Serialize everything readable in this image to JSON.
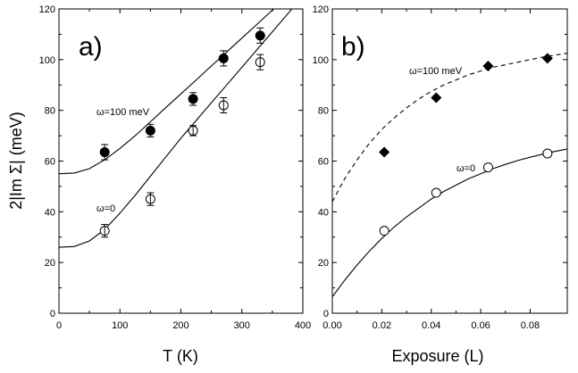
{
  "chart_data": [
    {
      "panel": "a)",
      "type": "scatter",
      "xlabel": "T (K)",
      "ylabel": "2|Im Σ| (meV)",
      "xlim": [
        0,
        400
      ],
      "ylim": [
        0,
        120
      ],
      "xticks": [
        0,
        100,
        200,
        300,
        400
      ],
      "yticks": [
        0,
        20,
        40,
        60,
        80,
        100,
        120
      ],
      "series": [
        {
          "name": "ω=100 meV",
          "marker": "filled-circle",
          "x": [
            75,
            150,
            220,
            270,
            330
          ],
          "y": [
            63.5,
            72,
            84.5,
            100.5,
            109.5
          ],
          "yerr": [
            3,
            2.5,
            2.5,
            3,
            3
          ],
          "fit_curve": {
            "x": [
              0,
              25,
              50,
              75,
              100,
              125,
              150,
              175,
              200,
              225,
              250,
              275,
              300,
              325,
              350,
              375,
              400
            ],
            "y": [
              55,
              55.3,
              57,
              60.5,
              65,
              70,
              75.5,
              81,
              86.5,
              92,
              97.5,
              103,
              108.5,
              114,
              119.5,
              125,
              130.5
            ]
          }
        },
        {
          "name": "ω=0",
          "marker": "open-circle-cross",
          "x": [
            75,
            150,
            220,
            270,
            330
          ],
          "y": [
            32.5,
            45,
            72,
            82,
            99
          ],
          "yerr": [
            2.5,
            2.5,
            2,
            3,
            3
          ],
          "fit_curve": {
            "x": [
              0,
              25,
              50,
              75,
              100,
              125,
              150,
              175,
              200,
              225,
              250,
              275,
              300,
              325,
              350,
              375,
              400
            ],
            "y": [
              26,
              26.3,
              28.5,
              33,
              39.5,
              46.5,
              54,
              61.5,
              69,
              76,
              83,
              90,
              97,
              104,
              111,
              118,
              125
            ]
          }
        }
      ]
    },
    {
      "panel": "b)",
      "type": "scatter",
      "xlabel": "Exposure (L)",
      "ylabel": "",
      "xlim": [
        0.0,
        0.095
      ],
      "ylim": [
        0,
        120
      ],
      "xticks": [
        0.0,
        0.02,
        0.04,
        0.06,
        0.08
      ],
      "xtick_labels": [
        "0.00",
        "0.02",
        "0.04",
        "0.06",
        "0.08"
      ],
      "yticks": [
        0,
        20,
        40,
        60,
        80,
        100,
        120
      ],
      "series": [
        {
          "name": "ω=100 meV",
          "marker": "filled-diamond",
          "line": "dashed",
          "x": [
            0.021,
            0.042,
            0.063,
            0.087
          ],
          "y": [
            63.5,
            85,
            97.5,
            100.5
          ],
          "fit_curve": {
            "x": [
              0.0,
              0.005,
              0.01,
              0.015,
              0.02,
              0.025,
              0.03,
              0.035,
              0.04,
              0.045,
              0.05,
              0.055,
              0.06,
              0.065,
              0.07,
              0.075,
              0.08,
              0.085,
              0.09,
              0.095
            ],
            "y": [
              44,
              53,
              60.5,
              67,
              72.5,
              77,
              81,
              84.5,
              87.5,
              90,
              92,
              94,
              95.5,
              97,
              98,
              99,
              100,
              101,
              101.8,
              102.5
            ]
          }
        },
        {
          "name": "ω=0",
          "marker": "open-circle",
          "line": "solid",
          "x": [
            0.021,
            0.042,
            0.063,
            0.087
          ],
          "y": [
            32.5,
            47.5,
            57.5,
            63
          ],
          "fit_curve": {
            "x": [
              0.0,
              0.005,
              0.01,
              0.015,
              0.02,
              0.025,
              0.03,
              0.035,
              0.04,
              0.045,
              0.05,
              0.055,
              0.06,
              0.065,
              0.07,
              0.075,
              0.08,
              0.085,
              0.09,
              0.095
            ],
            "y": [
              6.5,
              13,
              19,
              24.5,
              29.5,
              34,
              38,
              41.5,
              45,
              48,
              50.5,
              53,
              55,
              57,
              58.7,
              60.2,
              61.5,
              62.7,
              63.8,
              64.7
            ]
          }
        }
      ]
    }
  ],
  "annotations": {
    "a_top": "ω=100 meV",
    "a_bottom": "ω=0",
    "b_top": "ω=100 meV",
    "b_bottom": "ω=0"
  }
}
